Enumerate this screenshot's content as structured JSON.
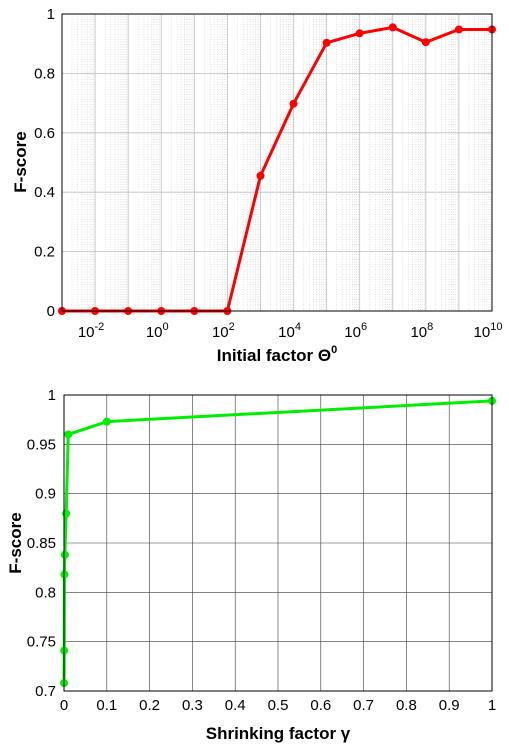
{
  "chart_data": [
    {
      "type": "line",
      "xscale": "log",
      "x": [
        "1e-3",
        "1e-2",
        "1e-1",
        "1e0",
        "1e1",
        "1e2",
        "1e3",
        "1e4",
        "1e5",
        "1e6",
        "1e7",
        "1e8",
        "1e9",
        "1e10"
      ],
      "x_exponents": [
        -3,
        -2,
        -1,
        0,
        1,
        2,
        3,
        4,
        5,
        6,
        7,
        8,
        9,
        10
      ],
      "series": [
        {
          "values": [
            0.0,
            0.0,
            0.0,
            0.0,
            0.0,
            0.0,
            0.455,
            0.698,
            0.903,
            0.935,
            0.955,
            0.905,
            0.948,
            0.948
          ],
          "color": "#ff0000"
        }
      ],
      "xlabel": "Initial factor Θ",
      "xlabel_sup": "0",
      "ylabel": "F-score",
      "xlim_exp": [
        -3,
        10
      ],
      "ylim": [
        0,
        1
      ],
      "xtick_base": "10",
      "xtick_exponents": [
        "-2",
        "0",
        "2",
        "4",
        "6",
        "8",
        "10"
      ],
      "yticks": [
        "0",
        "0.2",
        "0.4",
        "0.6",
        "0.8",
        "1"
      ],
      "grid": true,
      "minor_grid": true
    },
    {
      "type": "line",
      "x": [
        0.0001,
        0.0005,
        0.001,
        0.002,
        0.005,
        0.01,
        0.1,
        1
      ],
      "series": [
        {
          "values": [
            0.708,
            0.741,
            0.818,
            0.838,
            0.88,
            0.96,
            0.973,
            0.994
          ],
          "color": "#00ee00"
        }
      ],
      "xlabel": "Shrinking factor γ",
      "ylabel": "F-score",
      "xlim": [
        0,
        1
      ],
      "ylim": [
        0.7,
        1
      ],
      "xticks": [
        "0",
        "0.1",
        "0.2",
        "0.3",
        "0.4",
        "0.5",
        "0.6",
        "0.7",
        "0.8",
        "0.9",
        "1"
      ],
      "yticks": [
        "0.7",
        "0.75",
        "0.8",
        "0.85",
        "0.9",
        "0.95",
        "1"
      ],
      "grid": true
    }
  ]
}
